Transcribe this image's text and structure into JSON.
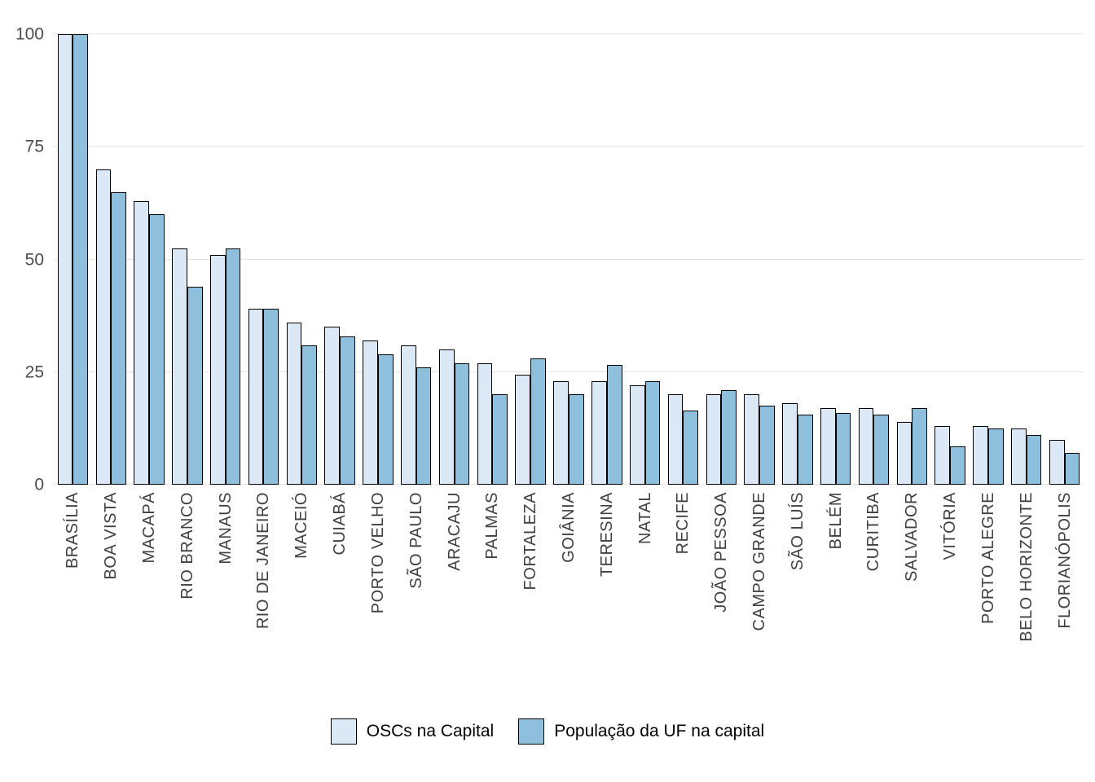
{
  "chart_data": {
    "type": "bar",
    "title": "",
    "xlabel": "",
    "ylabel": "",
    "ylim": [
      0,
      100
    ],
    "yticks": [
      0,
      25,
      50,
      75,
      100
    ],
    "grid": true,
    "legend_position": "bottom",
    "gridline_color": "#e3e3e3",
    "bar_border_color": "#000000",
    "axis_text_color": "#4d4d4d",
    "categories": [
      "BRASÍLIA",
      "BOA VISTA",
      "MACAPÁ",
      "RIO BRANCO",
      "MANAUS",
      "RIO DE JANEIRO",
      "MACEIÓ",
      "CUIABÁ",
      "PORTO VELHO",
      "SÃO PAULO",
      "ARACAJU",
      "PALMAS",
      "FORTALEZA",
      "GOIÂNIA",
      "TERESINA",
      "NATAL",
      "RECIFE",
      "JOÃO PESSOA",
      "CAMPO GRANDE",
      "SÃO LUÍS",
      "BELÉM",
      "CURITIBA",
      "SALVADOR",
      "VITÓRIA",
      "PORTO ALEGRE",
      "BELO HORIZONTE",
      "FLORIANÓPOLIS"
    ],
    "series": [
      {
        "name": "OSCs na Capital",
        "color": "#dbe9f6",
        "values": [
          100,
          70,
          63,
          52.5,
          51,
          39,
          36,
          35,
          32,
          31,
          30,
          27,
          24.5,
          23,
          23,
          22,
          20,
          20,
          20,
          18,
          17,
          17,
          14,
          13,
          13,
          12.5,
          10
        ]
      },
      {
        "name": "População da UF na capital",
        "color": "#8ebfdc",
        "values": [
          100,
          65,
          60,
          44,
          52.5,
          39,
          31,
          33,
          29,
          26,
          27,
          20,
          28,
          20,
          26.5,
          23,
          16.5,
          21,
          17.5,
          15.5,
          16,
          15.5,
          17,
          8.5,
          12.5,
          11,
          7
        ]
      }
    ]
  }
}
